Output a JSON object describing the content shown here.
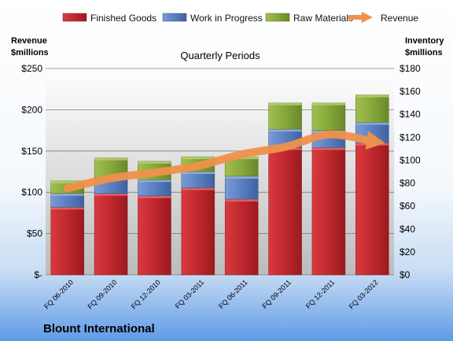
{
  "chart_data": {
    "type": "bar",
    "stacked": true,
    "subtitle": "Quarterly Periods",
    "company": "Blount International",
    "left_axis_title": [
      "Revenue",
      "$millions"
    ],
    "right_axis_title": [
      "Inventory",
      "$millions"
    ],
    "categories": [
      "FQ 06-2010",
      "FQ 09-2010",
      "FQ 12-2010",
      "FQ 03-2011",
      "FQ 06-2011",
      "FQ 09-2011",
      "FQ 12-2011",
      "FQ 03-2012"
    ],
    "series": [
      {
        "name": "Finished Goods",
        "color": "#c0282d",
        "values": [
          59,
          71,
          69,
          76,
          66,
          111,
          111,
          115
        ]
      },
      {
        "name": "Work in Progress",
        "color": "#5a7fc1",
        "values": [
          12,
          14,
          14,
          14,
          20,
          16,
          15,
          18
        ]
      },
      {
        "name": "Raw Materials",
        "color": "#86a83a",
        "values": [
          11,
          17,
          16,
          13,
          17,
          23,
          24,
          24
        ]
      }
    ],
    "line_series": {
      "name": "Revenue",
      "color": "#f0924a",
      "values": [
        105,
        117,
        124,
        132,
        146,
        155,
        170,
        162
      ]
    },
    "left_axis": {
      "min": 0,
      "max": 250,
      "ticks": [
        0,
        50,
        100,
        150,
        200,
        250
      ],
      "tick_labels": [
        "$-",
        "$50",
        "$100",
        "$150",
        "$200",
        "$250"
      ]
    },
    "right_axis": {
      "min": 0,
      "max": 180,
      "ticks": [
        0,
        20,
        40,
        60,
        80,
        100,
        120,
        140,
        160,
        180
      ],
      "tick_labels": [
        "$0",
        "$20",
        "$40",
        "$60",
        "$80",
        "$100",
        "$120",
        "$140",
        "$160",
        "$180"
      ]
    },
    "legend_position": "top",
    "grid": true
  }
}
